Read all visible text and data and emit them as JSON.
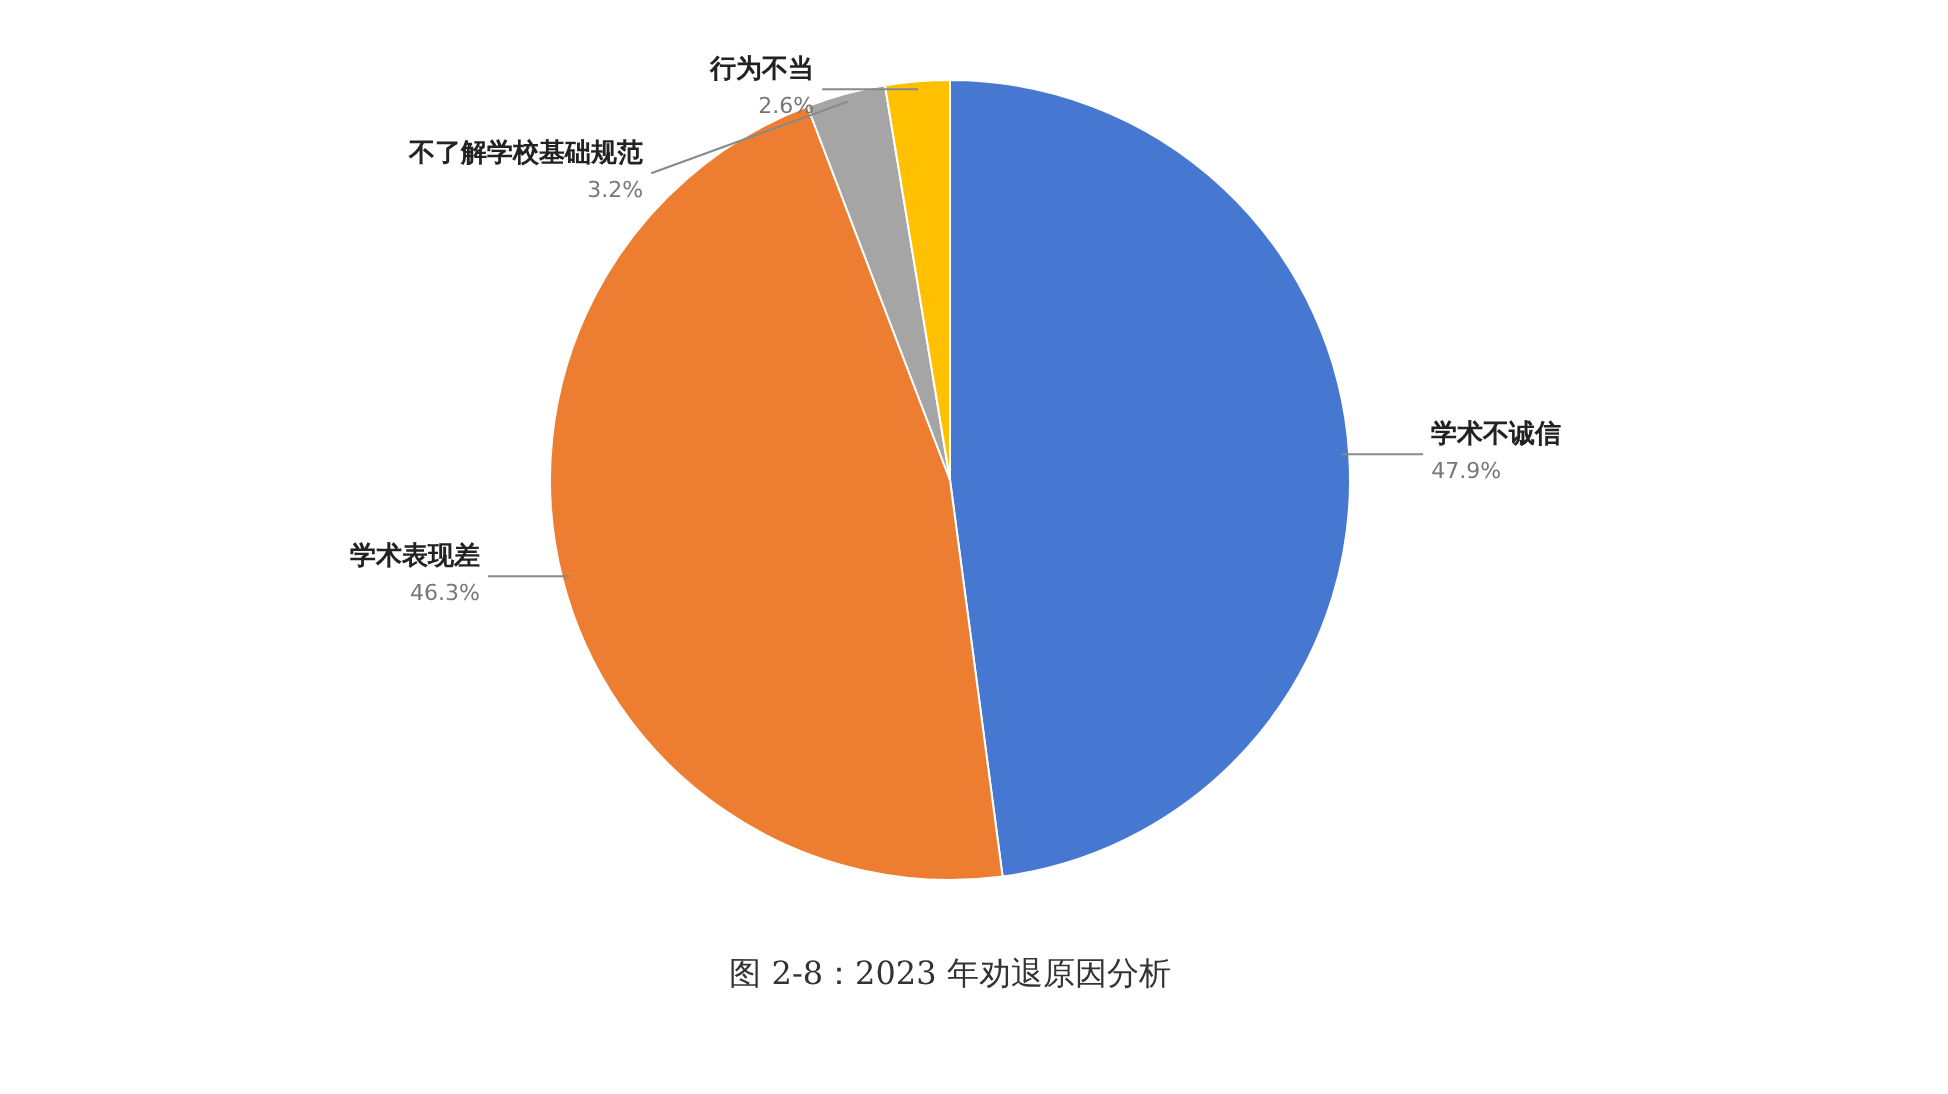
{
  "chart_data": {
    "type": "pie",
    "title": "图 2-8：2023 年劝退原因分析",
    "categories": [
      "学术不诚信",
      "学术表现差",
      "不了解学校基础规范",
      "行为不当"
    ],
    "values": [
      47.9,
      46.3,
      3.2,
      2.6
    ],
    "colors": [
      "#4677d1",
      "#ed7d31",
      "#a5a5a5",
      "#ffc000"
    ],
    "value_labels": [
      "47.9%",
      "46.3%",
      "3.2%",
      "2.6%"
    ],
    "data_labels": true,
    "legend": false
  }
}
